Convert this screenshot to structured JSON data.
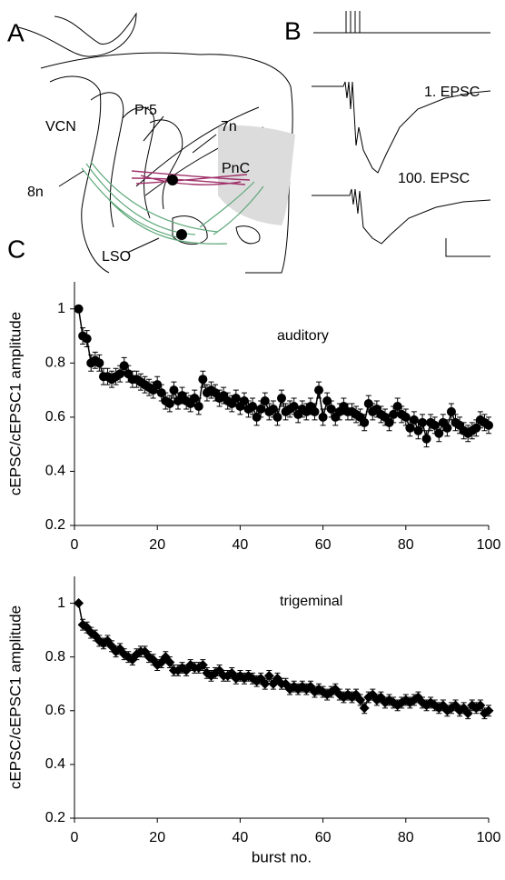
{
  "panels": {
    "a": "A",
    "b": "B",
    "c": "C"
  },
  "diagram": {
    "labels": [
      "VCN",
      "Pr5",
      "7n",
      "PnC",
      "8n",
      "LSO"
    ]
  },
  "traces": {
    "labels": [
      "1. EPSC",
      "100. EPSC"
    ]
  },
  "chart_data": [
    {
      "type": "line",
      "ylabel": "cEPSC/cEPSC1 amplitude",
      "annotation": "auditory",
      "marker": "circle",
      "xlim": [
        0,
        100
      ],
      "xticks": [
        0,
        20,
        40,
        60,
        80,
        100
      ],
      "ylim": [
        0.2,
        1.1
      ],
      "yticks": [
        0.2,
        0.4,
        0.6,
        0.8,
        1
      ],
      "series": [
        {
          "name": "auditory",
          "color": "#000000",
          "x": [
            1,
            2,
            3,
            4,
            5,
            6,
            7,
            8,
            9,
            10,
            11,
            12,
            13,
            14,
            15,
            16,
            17,
            18,
            19,
            20,
            21,
            22,
            23,
            24,
            25,
            26,
            27,
            28,
            29,
            30,
            31,
            32,
            33,
            34,
            35,
            36,
            37,
            38,
            39,
            40,
            41,
            42,
            43,
            44,
            45,
            46,
            47,
            48,
            49,
            50,
            51,
            52,
            53,
            54,
            55,
            56,
            57,
            58,
            59,
            60,
            61,
            62,
            63,
            64,
            65,
            66,
            67,
            68,
            69,
            70,
            71,
            72,
            73,
            74,
            75,
            76,
            77,
            78,
            79,
            80,
            81,
            82,
            83,
            84,
            85,
            86,
            87,
            88,
            89,
            90,
            91,
            92,
            93,
            94,
            95,
            96,
            97,
            98,
            99,
            100
          ],
          "values": [
            1.0,
            0.9,
            0.89,
            0.8,
            0.81,
            0.8,
            0.75,
            0.75,
            0.74,
            0.75,
            0.76,
            0.79,
            0.76,
            0.74,
            0.74,
            0.73,
            0.72,
            0.71,
            0.7,
            0.72,
            0.69,
            0.66,
            0.65,
            0.7,
            0.66,
            0.68,
            0.66,
            0.65,
            0.67,
            0.64,
            0.74,
            0.69,
            0.7,
            0.69,
            0.67,
            0.68,
            0.66,
            0.65,
            0.67,
            0.64,
            0.66,
            0.63,
            0.64,
            0.6,
            0.63,
            0.66,
            0.62,
            0.63,
            0.6,
            0.67,
            0.62,
            0.63,
            0.64,
            0.61,
            0.63,
            0.62,
            0.64,
            0.62,
            0.7,
            0.6,
            0.66,
            0.63,
            0.6,
            0.62,
            0.64,
            0.62,
            0.62,
            0.61,
            0.6,
            0.58,
            0.65,
            0.62,
            0.63,
            0.61,
            0.6,
            0.58,
            0.61,
            0.64,
            0.61,
            0.6,
            0.56,
            0.59,
            0.55,
            0.58,
            0.52,
            0.58,
            0.57,
            0.54,
            0.58,
            0.56,
            0.62,
            0.58,
            0.57,
            0.55,
            0.54,
            0.55,
            0.56,
            0.59,
            0.58,
            0.57
          ],
          "errors": [
            0,
            0.03,
            0.03,
            0.03,
            0.03,
            0.03,
            0.03,
            0.03,
            0.03,
            0.03,
            0.03,
            0.03,
            0.03,
            0.03,
            0.03,
            0.03,
            0.03,
            0.03,
            0.03,
            0.03,
            0.03,
            0.03,
            0.03,
            0.03,
            0.03,
            0.03,
            0.03,
            0.03,
            0.03,
            0.03,
            0.03,
            0.03,
            0.03,
            0.03,
            0.03,
            0.03,
            0.03,
            0.03,
            0.03,
            0.03,
            0.03,
            0.03,
            0.03,
            0.03,
            0.03,
            0.03,
            0.03,
            0.03,
            0.03,
            0.03,
            0.03,
            0.03,
            0.03,
            0.03,
            0.03,
            0.03,
            0.03,
            0.03,
            0.03,
            0.03,
            0.03,
            0.03,
            0.03,
            0.03,
            0.03,
            0.03,
            0.03,
            0.03,
            0.03,
            0.03,
            0.03,
            0.03,
            0.03,
            0.03,
            0.03,
            0.03,
            0.03,
            0.03,
            0.03,
            0.03,
            0.03,
            0.03,
            0.03,
            0.03,
            0.03,
            0.03,
            0.03,
            0.03,
            0.03,
            0.03,
            0.03,
            0.03,
            0.03,
            0.03,
            0.03,
            0.03,
            0.03,
            0.03,
            0.03,
            0.03
          ]
        }
      ]
    },
    {
      "type": "line",
      "ylabel": "cEPSC/cEPSC1 amplitude",
      "annotation": "trigeminal",
      "marker": "diamond",
      "xlabel": "burst no.",
      "xlim": [
        0,
        100
      ],
      "xticks": [
        0,
        20,
        40,
        60,
        80,
        100
      ],
      "ylim": [
        0.2,
        1.1
      ],
      "yticks": [
        0.2,
        0.4,
        0.6,
        0.8,
        1
      ],
      "series": [
        {
          "name": "trigeminal",
          "color": "#000000",
          "x": [
            1,
            2,
            3,
            4,
            5,
            6,
            7,
            8,
            9,
            10,
            11,
            12,
            13,
            14,
            15,
            16,
            17,
            18,
            19,
            20,
            21,
            22,
            23,
            24,
            25,
            26,
            27,
            28,
            29,
            30,
            31,
            32,
            33,
            34,
            35,
            36,
            37,
            38,
            39,
            40,
            41,
            42,
            43,
            44,
            45,
            46,
            47,
            48,
            49,
            50,
            51,
            52,
            53,
            54,
            55,
            56,
            57,
            58,
            59,
            60,
            61,
            62,
            63,
            64,
            65,
            66,
            67,
            68,
            69,
            70,
            71,
            72,
            73,
            74,
            75,
            76,
            77,
            78,
            79,
            80,
            81,
            82,
            83,
            84,
            85,
            86,
            87,
            88,
            89,
            90,
            91,
            92,
            93,
            94,
            95,
            96,
            97,
            98,
            99,
            100
          ],
          "values": [
            1.0,
            0.92,
            0.91,
            0.89,
            0.88,
            0.86,
            0.85,
            0.86,
            0.84,
            0.82,
            0.83,
            0.81,
            0.8,
            0.79,
            0.81,
            0.82,
            0.82,
            0.8,
            0.79,
            0.77,
            0.78,
            0.8,
            0.78,
            0.75,
            0.75,
            0.76,
            0.75,
            0.77,
            0.76,
            0.76,
            0.77,
            0.74,
            0.73,
            0.74,
            0.75,
            0.73,
            0.73,
            0.74,
            0.72,
            0.73,
            0.72,
            0.73,
            0.72,
            0.71,
            0.72,
            0.7,
            0.73,
            0.7,
            0.72,
            0.7,
            0.7,
            0.68,
            0.69,
            0.68,
            0.69,
            0.68,
            0.69,
            0.67,
            0.68,
            0.67,
            0.66,
            0.67,
            0.68,
            0.66,
            0.65,
            0.66,
            0.65,
            0.66,
            0.64,
            0.61,
            0.65,
            0.66,
            0.64,
            0.65,
            0.63,
            0.64,
            0.63,
            0.62,
            0.63,
            0.64,
            0.63,
            0.64,
            0.65,
            0.63,
            0.62,
            0.63,
            0.62,
            0.61,
            0.62,
            0.6,
            0.61,
            0.62,
            0.6,
            0.61,
            0.59,
            0.62,
            0.61,
            0.62,
            0.59,
            0.6
          ],
          "errors": [
            0,
            0.02,
            0.02,
            0.02,
            0.02,
            0.02,
            0.02,
            0.02,
            0.02,
            0.02,
            0.02,
            0.02,
            0.02,
            0.02,
            0.02,
            0.02,
            0.02,
            0.02,
            0.02,
            0.02,
            0.02,
            0.02,
            0.02,
            0.02,
            0.02,
            0.02,
            0.02,
            0.02,
            0.02,
            0.02,
            0.02,
            0.02,
            0.02,
            0.02,
            0.02,
            0.02,
            0.02,
            0.02,
            0.02,
            0.02,
            0.02,
            0.02,
            0.02,
            0.02,
            0.02,
            0.02,
            0.02,
            0.02,
            0.02,
            0.02,
            0.02,
            0.02,
            0.02,
            0.02,
            0.02,
            0.02,
            0.02,
            0.02,
            0.02,
            0.02,
            0.02,
            0.02,
            0.02,
            0.02,
            0.02,
            0.02,
            0.02,
            0.02,
            0.02,
            0.02,
            0.02,
            0.02,
            0.02,
            0.02,
            0.02,
            0.02,
            0.02,
            0.02,
            0.02,
            0.02,
            0.02,
            0.02,
            0.02,
            0.02,
            0.02,
            0.02,
            0.02,
            0.02,
            0.02,
            0.02,
            0.02,
            0.02,
            0.02,
            0.02,
            0.02,
            0.02,
            0.02,
            0.02,
            0.02,
            0.02
          ]
        }
      ]
    }
  ]
}
